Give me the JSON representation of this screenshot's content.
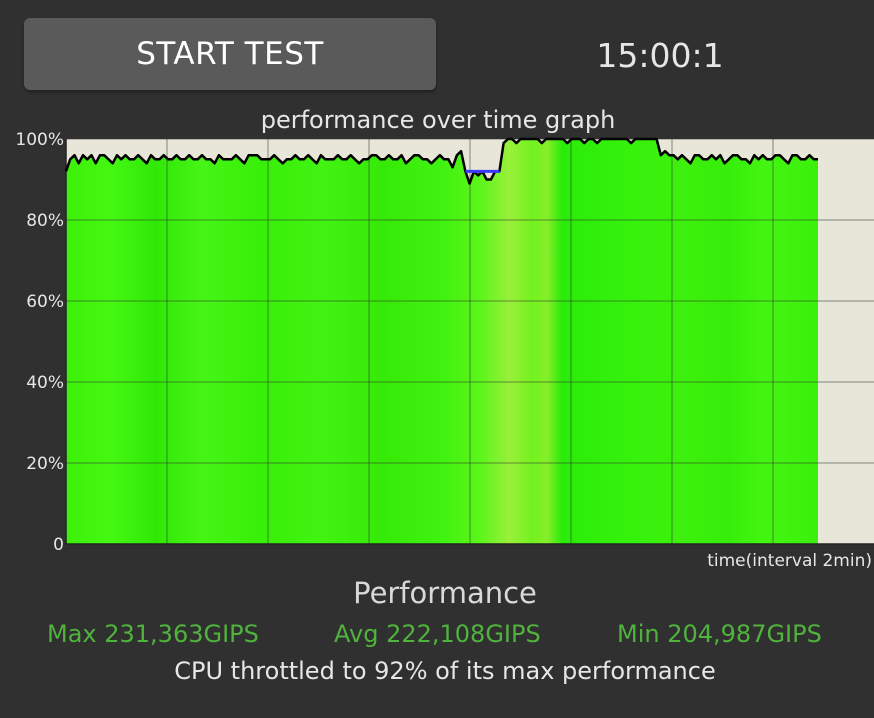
{
  "controls": {
    "start_button_label": "START TEST",
    "timer": "15:00:1"
  },
  "chart_data": {
    "type": "area",
    "title": "performance over time graph",
    "xlabel": "time(interval 2min)",
    "ylabel": "",
    "y_tick_labels": [
      "100%",
      "80%",
      "60%",
      "40%",
      "20%",
      "0"
    ],
    "ylim": [
      0,
      100
    ],
    "x_interval_minutes": 2,
    "grid": true,
    "series": [
      {
        "values": [
          92,
          95,
          96,
          94,
          96,
          95,
          96,
          94,
          96,
          96,
          95,
          94,
          96,
          95,
          96,
          95,
          95,
          96,
          95,
          94,
          96,
          95,
          95,
          96,
          95,
          95,
          96,
          95,
          95,
          96,
          95,
          95,
          96,
          95,
          95,
          94,
          96,
          95,
          95,
          95,
          96,
          95,
          94,
          96,
          96,
          96,
          95,
          95,
          95,
          96,
          95,
          94,
          95,
          95,
          96,
          95,
          95,
          96,
          95,
          94,
          96,
          95,
          95,
          95,
          96,
          95,
          95,
          96,
          95,
          94,
          95,
          95,
          96,
          96,
          95,
          95,
          96,
          95,
          95,
          96,
          94,
          95,
          96,
          96,
          95,
          95,
          94,
          95,
          96,
          95,
          95,
          93,
          96,
          97,
          92,
          89,
          92,
          91,
          92,
          90,
          90,
          92,
          92,
          99,
          100,
          100,
          99,
          100,
          100,
          100,
          100,
          100,
          99,
          100,
          100,
          100,
          100,
          100,
          99,
          100,
          100,
          100,
          99,
          100,
          100,
          99,
          100,
          100,
          100,
          100,
          100,
          100,
          100,
          99,
          100,
          100,
          100,
          100,
          100,
          100,
          96,
          97,
          96,
          96,
          95,
          96,
          95,
          94,
          96,
          96,
          95,
          95,
          96,
          95,
          96,
          94,
          95,
          96,
          96,
          95,
          95,
          94,
          96,
          95,
          96,
          95,
          95,
          96,
          96,
          95,
          94,
          96,
          96,
          95,
          95,
          96,
          95,
          95
        ]
      },
      {
        "values": [
          92,
          92,
          92,
          92,
          92,
          92,
          92,
          92,
          92
        ]
      }
    ],
    "colors": {
      "area_fill": "#38f007",
      "line": "#000000",
      "secondary_line": "#3b3bff",
      "plot_background": "#e8e6d8",
      "grid": "#333333",
      "axis_text": "#e6e6e6"
    }
  },
  "summary": {
    "title": "Performance",
    "max": "Max 231,363GIPS",
    "avg": "Avg 222,108GIPS",
    "min": "Min 204,987GIPS",
    "throttle_message": "CPU throttled to 92% of its max performance"
  }
}
